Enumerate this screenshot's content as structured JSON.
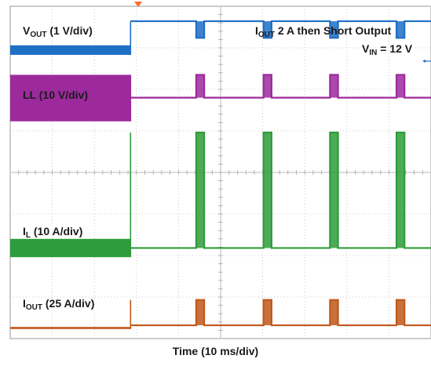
{
  "chart_data": {
    "type": "line",
    "title": "",
    "xlabel": "Time (10 ms/div)",
    "grid": true,
    "divisions": {
      "x": 10,
      "y": 8
    },
    "x_unit": "ms",
    "xlim": [
      0,
      100
    ],
    "annotations": {
      "test_condition": {
        "iout_prefix": "I",
        "iout_sub": "OUT",
        "text": " 2 A then Short Output"
      },
      "vin": {
        "prefix": "V",
        "sub": "IN",
        "text": " = 12 V"
      }
    },
    "series": [
      {
        "name": "V_OUT",
        "label_prefix": "V",
        "label_sub": "OUT",
        "label_text": " (1 V/div)",
        "color": "#1f6fc5",
        "low_div": 6.83,
        "high_div": 7.06,
        "steady_div": 7.64,
        "pulse_div": 7.24
      },
      {
        "name": "LL",
        "label_prefix": "LL",
        "label_sub": "",
        "label_text": " (10 V/div)",
        "color": "#9c2a9c",
        "low_div": 5.23,
        "high_div": 6.35,
        "steady_div": 5.8,
        "pulse_div": 6.35
      },
      {
        "name": "I_L",
        "label_prefix": "I",
        "label_sub": "L",
        "label_text": " (10 A/div)",
        "color": "#2e9c3a",
        "low_div": 1.96,
        "high_div": 2.4,
        "steady_div": 2.18,
        "pulse_div": 4.96
      },
      {
        "name": "I_OUT",
        "label_prefix": "I",
        "label_sub": "OUT",
        "label_text": " (25 A/div)",
        "color": "#c0581a",
        "low_div": 0.23,
        "high_div": 0.28,
        "steady_div": 0.32,
        "pulse_div": 0.93
      }
    ],
    "short_event_ms": 28.6,
    "pulse_ms": [
      44.2,
      60.2,
      76.0,
      91.8
    ],
    "pulse_width_ms": 1.9
  }
}
